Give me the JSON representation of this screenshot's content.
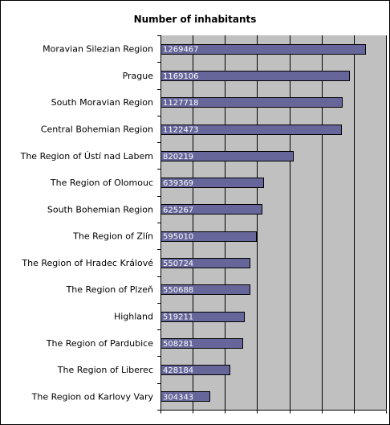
{
  "chart_data": {
    "type": "bar",
    "orientation": "horizontal",
    "title": "Number of inhabitants",
    "xlabel": "",
    "ylabel": "",
    "xlim": [
      0,
      1400000
    ],
    "grid": true,
    "legend": "none",
    "colors": {
      "bar_fill": "#66669a",
      "bar_edge": "#000000",
      "plot_background": "#c0c0c0",
      "gridline": "#000000",
      "value_label": "#ffffff"
    },
    "categories": [
      "Moravian Silezian Region",
      "Prague",
      "South Moravian Region",
      "Central Bohemian Region",
      "The Region of Ústí nad Labem",
      "The Region of Olomouc",
      "South Bohemian Region",
      "The Region of Zlín",
      "The Region of Hradec Králové",
      "The Region of Plzeň",
      "Highland",
      "The Region of Pardubice",
      "The Region of Liberec",
      "The Region od Karlovy Vary"
    ],
    "values": [
      1269467,
      1169106,
      1127718,
      1122473,
      820219,
      639369,
      625267,
      595010,
      550724,
      550688,
      519211,
      508281,
      428184,
      304343
    ]
  }
}
